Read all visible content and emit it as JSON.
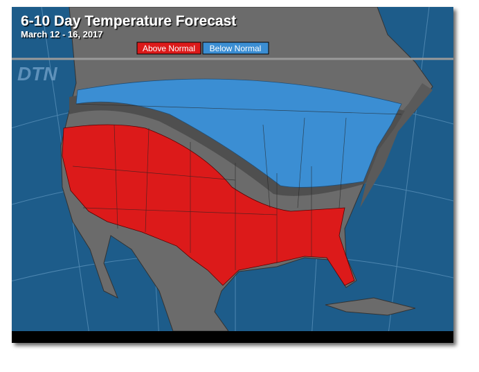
{
  "header": {
    "title": "6-10 Day Temperature Forecast",
    "subtitle": "March 12 - 16, 2017"
  },
  "legend": {
    "items": [
      {
        "label": "Above Normal"
      },
      {
        "label": "Below Normal"
      }
    ]
  },
  "watermark": "DTN"
}
